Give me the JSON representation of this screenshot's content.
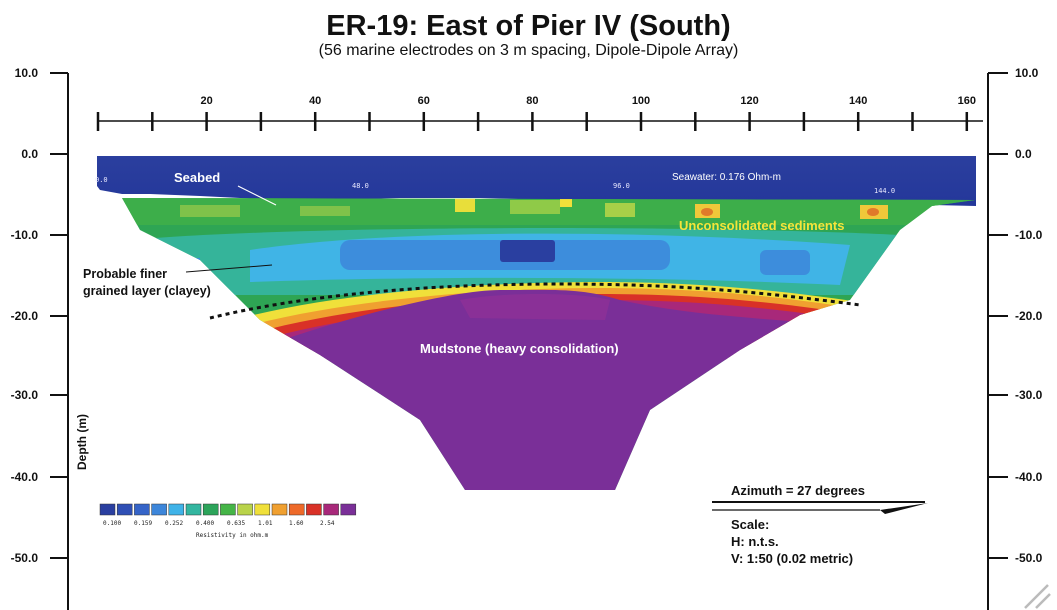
{
  "title": "ER-19: East of Pier IV (South)",
  "subtitle": "(56 marine electrodes on 3 m spacing, Dipole-Dipole Array)",
  "y_axis": {
    "label": "Depth (m)",
    "ticks": [
      "10.0",
      "0.0",
      "-10.0",
      "-20.0",
      "-30.0",
      "-40.0",
      "-50.0"
    ]
  },
  "x_axis": {
    "ticks": [
      "20",
      "40",
      "60",
      "80",
      "100",
      "120",
      "140",
      "160"
    ]
  },
  "electrode_labels": [
    "0.0",
    "48.0",
    "96.0",
    "144.0"
  ],
  "annotations": {
    "seabed": "Seabed",
    "seawater": "Seawater: 0.176 Ohm-m",
    "unconsolidated": "Unconsolidated sediments",
    "finer_line1": "Probable finer",
    "finer_line2": "grained layer (clayey)",
    "mudstone": "Mudstone (heavy consolidation)"
  },
  "legend": {
    "title": "Resistivity in ohm.m",
    "labels": [
      "0.100",
      "0.159",
      "0.252",
      "0.400",
      "0.635",
      "1.01",
      "1.60",
      "2.54"
    ],
    "colors": [
      "#2a3fa0",
      "#2f4fb5",
      "#3564c8",
      "#3d86da",
      "#3fb3e8",
      "#33b6a0",
      "#2ca45a",
      "#45b547",
      "#b9d34a",
      "#f0e03a",
      "#f0a030",
      "#ee6a2a",
      "#d93127",
      "#a8287a",
      "#7a2f98"
    ]
  },
  "info": {
    "azimuth": "Azimuth = 27 degrees",
    "scale": "Scale:",
    "h_scale": "H: n.t.s.",
    "v_scale": "V: 1:50 (0.02 metric)"
  }
}
